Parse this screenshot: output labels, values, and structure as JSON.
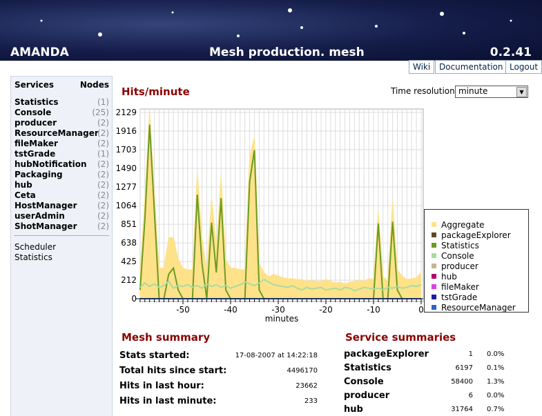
{
  "header": {
    "app": "AMANDA",
    "title": "Mesh production. mesh",
    "version": "0.2.41",
    "links": [
      "Wiki",
      "Documentation",
      "Logout"
    ]
  },
  "sidebar": {
    "col_services": "Services",
    "col_nodes": "Nodes",
    "services": [
      {
        "name": "Statistics",
        "nodes": "(1)"
      },
      {
        "name": "Console",
        "nodes": "(25)"
      },
      {
        "name": "producer",
        "nodes": "(2)"
      },
      {
        "name": "ResourceManager",
        "nodes": "(2)"
      },
      {
        "name": "fileMaker",
        "nodes": "(2)"
      },
      {
        "name": "tstGrade",
        "nodes": "(1)"
      },
      {
        "name": "hubNotification",
        "nodes": "(2)"
      },
      {
        "name": "Packaging",
        "nodes": "(2)"
      },
      {
        "name": "hub",
        "nodes": "(2)"
      },
      {
        "name": "Ceta",
        "nodes": "(2)"
      },
      {
        "name": "HostManager",
        "nodes": "(2)"
      },
      {
        "name": "userAdmin",
        "nodes": "(2)"
      },
      {
        "name": "ShotManager",
        "nodes": "(2)"
      }
    ],
    "links": [
      "Scheduler",
      "Statistics"
    ]
  },
  "time_resolution": {
    "label": "Time resolution:",
    "value": "minute"
  },
  "chart_data": {
    "type": "area",
    "title": "Hits/minute",
    "xlabel": "minutes",
    "x": [
      -59,
      -58,
      -57,
      -56,
      -55,
      -54,
      -53,
      -52,
      -51,
      -50,
      -49,
      -48,
      -47,
      -46,
      -45,
      -44,
      -43,
      -42,
      -41,
      -40,
      -39,
      -38,
      -37,
      -36,
      -35,
      -34,
      -33,
      -32,
      -31,
      -30,
      -29,
      -28,
      -27,
      -26,
      -25,
      -24,
      -23,
      -22,
      -21,
      -20,
      -19,
      -18,
      -17,
      -16,
      -15,
      -14,
      -13,
      -12,
      -11,
      -10,
      -9,
      -8,
      -7,
      -6,
      -5,
      -4,
      -3,
      -2,
      -1,
      0
    ],
    "xlim": [
      -60,
      0
    ],
    "xticks": [
      -50,
      -40,
      -30,
      -20,
      -10,
      0
    ],
    "ylim": [
      0,
      2129
    ],
    "yticks": [
      0,
      212,
      425,
      638,
      851,
      1064,
      1277,
      1490,
      1703,
      1916,
      2129
    ],
    "grid": true,
    "series": [
      {
        "name": "Aggregate",
        "color": "#fde28a",
        "fill": true,
        "values": [
          300,
          1150,
          2150,
          1200,
          350,
          350,
          700,
          700,
          450,
          350,
          330,
          330,
          1450,
          700,
          330,
          1150,
          600,
          1400,
          450,
          350,
          350,
          330,
          330,
          1620,
          1850,
          400,
          300,
          250,
          280,
          260,
          240,
          230,
          230,
          220,
          220,
          200,
          210,
          200,
          200,
          220,
          200,
          180,
          190,
          170,
          190,
          200,
          210,
          200,
          230,
          220,
          1000,
          250,
          200,
          1120,
          330,
          260,
          220,
          230,
          240,
          300
        ]
      },
      {
        "name": "packageExplorer",
        "color": "#5e4a1e",
        "values": [
          0,
          0,
          0,
          0,
          0,
          0,
          0,
          0,
          0,
          0,
          0,
          0,
          0,
          0,
          0,
          0,
          0,
          0,
          0,
          0,
          0,
          0,
          0,
          0,
          0,
          0,
          0,
          0,
          0,
          0,
          0,
          0,
          0,
          0,
          0,
          0,
          0,
          0,
          0,
          0,
          0,
          0,
          0,
          0,
          0,
          0,
          0,
          0,
          0,
          0,
          0,
          0,
          0,
          0,
          0,
          0,
          0,
          0,
          0,
          0
        ]
      },
      {
        "name": "Statistics",
        "color": "#6b9b22",
        "values": [
          100,
          900,
          1990,
          1000,
          0,
          0,
          280,
          350,
          100,
          0,
          0,
          0,
          1190,
          400,
          0,
          870,
          300,
          1150,
          100,
          0,
          0,
          0,
          0,
          1340,
          1700,
          100,
          0,
          0,
          0,
          0,
          0,
          0,
          0,
          0,
          0,
          0,
          0,
          0,
          0,
          0,
          0,
          0,
          0,
          0,
          0,
          0,
          0,
          0,
          0,
          0,
          860,
          0,
          0,
          880,
          100,
          0,
          0,
          0,
          0,
          0
        ]
      },
      {
        "name": "Console",
        "color": "#a8dca0",
        "values": [
          130,
          180,
          140,
          170,
          130,
          150,
          200,
          120,
          150,
          140,
          160,
          130,
          150,
          120,
          170,
          140,
          160,
          130,
          150,
          120,
          140,
          160,
          190,
          170,
          150,
          180,
          220,
          190,
          160,
          150,
          140,
          130,
          150,
          120,
          100,
          130,
          110,
          120,
          130,
          100,
          110,
          120,
          100,
          130,
          120,
          90,
          110,
          130,
          120,
          110,
          120,
          100,
          130,
          120,
          140,
          120,
          130,
          150,
          140,
          160
        ]
      },
      {
        "name": "producer",
        "color": "#c9b68c",
        "values": [
          0,
          0,
          0,
          0,
          0,
          0,
          0,
          0,
          0,
          0,
          0,
          0,
          0,
          0,
          0,
          0,
          0,
          0,
          0,
          0,
          0,
          0,
          0,
          0,
          0,
          0,
          0,
          0,
          0,
          0,
          0,
          0,
          0,
          0,
          0,
          0,
          0,
          0,
          0,
          0,
          0,
          0,
          0,
          0,
          0,
          0,
          0,
          0,
          0,
          0,
          0,
          0,
          0,
          0,
          0,
          0,
          0,
          0,
          0,
          0
        ]
      },
      {
        "name": "hub",
        "color": "#b0006c",
        "values": [
          0,
          0,
          0,
          0,
          0,
          0,
          0,
          0,
          0,
          0,
          0,
          0,
          0,
          0,
          0,
          0,
          0,
          0,
          0,
          0,
          0,
          0,
          0,
          0,
          0,
          0,
          0,
          0,
          0,
          0,
          0,
          0,
          0,
          0,
          0,
          0,
          0,
          0,
          0,
          0,
          0,
          0,
          0,
          0,
          0,
          0,
          0,
          0,
          0,
          0,
          0,
          0,
          0,
          0,
          0,
          0,
          0,
          0,
          0,
          0
        ]
      },
      {
        "name": "fileMaker",
        "color": "#e040e0",
        "values": [
          0,
          0,
          0,
          0,
          0,
          0,
          0,
          0,
          0,
          0,
          0,
          0,
          0,
          0,
          0,
          0,
          0,
          0,
          0,
          0,
          0,
          0,
          0,
          0,
          0,
          0,
          0,
          0,
          0,
          0,
          0,
          0,
          0,
          0,
          0,
          0,
          0,
          0,
          0,
          0,
          0,
          0,
          0,
          0,
          0,
          0,
          0,
          0,
          0,
          0,
          0,
          0,
          0,
          0,
          0,
          0,
          0,
          0,
          0,
          0
        ]
      },
      {
        "name": "tstGrade",
        "color": "#1c1c9c",
        "values": [
          0,
          0,
          0,
          0,
          0,
          0,
          0,
          0,
          0,
          0,
          0,
          0,
          0,
          0,
          0,
          0,
          0,
          0,
          0,
          0,
          0,
          0,
          0,
          0,
          0,
          0,
          0,
          0,
          0,
          0,
          0,
          0,
          0,
          0,
          0,
          0,
          0,
          0,
          0,
          0,
          0,
          0,
          0,
          0,
          0,
          0,
          0,
          0,
          0,
          0,
          0,
          0,
          0,
          0,
          0,
          0,
          0,
          0,
          0,
          0
        ]
      },
      {
        "name": "ResourceManager",
        "color": "#2f62c4",
        "values": [
          0,
          0,
          0,
          0,
          0,
          0,
          0,
          0,
          0,
          0,
          0,
          0,
          0,
          0,
          0,
          0,
          0,
          0,
          0,
          0,
          0,
          0,
          0,
          0,
          0,
          0,
          0,
          0,
          0,
          0,
          0,
          0,
          0,
          0,
          0,
          0,
          0,
          0,
          0,
          0,
          0,
          0,
          0,
          0,
          0,
          0,
          0,
          0,
          0,
          0,
          0,
          0,
          0,
          0,
          0,
          0,
          0,
          0,
          0,
          0
        ]
      }
    ]
  },
  "mesh_summary": {
    "title": "Mesh summary",
    "rows": [
      [
        "Stats started:",
        "17-08-2007 at 14:22:18"
      ],
      [
        "Total hits since start:",
        "4496170"
      ],
      [
        "Hits in last hour:",
        "23662"
      ],
      [
        "Hits in last minute:",
        "233"
      ]
    ]
  },
  "service_summaries": {
    "title": "Service summaries",
    "rows": [
      [
        "packageExplorer",
        "1",
        "0.0%"
      ],
      [
        "Statistics",
        "6197",
        "0.1%"
      ],
      [
        "Console",
        "58400",
        "1.3%"
      ],
      [
        "producer",
        "6",
        "0.0%"
      ],
      [
        "hub",
        "31764",
        "0.7%"
      ]
    ]
  }
}
